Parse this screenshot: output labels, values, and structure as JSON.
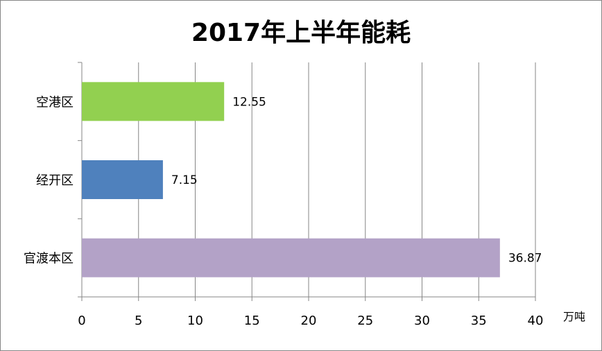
{
  "chart_data": {
    "type": "bar",
    "orientation": "horizontal",
    "title": "2017年上半年能耗",
    "xlabel": "万吨",
    "ylabel": "",
    "categories": [
      "空港区",
      "经开区",
      "官渡本区"
    ],
    "values": [
      12.55,
      7.15,
      36.87
    ],
    "data_labels": [
      "12.55",
      "7.15",
      "36.87"
    ],
    "colors": [
      "#92d050",
      "#4f81bd",
      "#b3a2c7"
    ],
    "xlim": [
      0,
      40
    ],
    "x_ticks": [
      0,
      5,
      10,
      15,
      20,
      25,
      30,
      35,
      40
    ],
    "grid": true,
    "legend": "none"
  }
}
